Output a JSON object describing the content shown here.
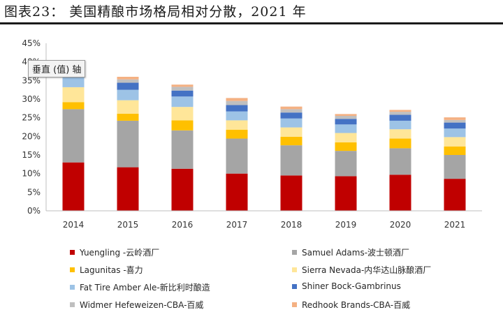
{
  "figure_title": "图表23：  美国精酿市场格局相对分散，2021 年",
  "tooltip": "垂直 (值) 轴",
  "chart_data": {
    "type": "bar",
    "stacked": true,
    "categories": [
      "2014",
      "2015",
      "2016",
      "2017",
      "2018",
      "2019",
      "2020",
      "2021"
    ],
    "ylim": [
      0,
      45
    ],
    "ytick_values": [
      0,
      5,
      10,
      15,
      20,
      25,
      30,
      35,
      40,
      45
    ],
    "ytick_labels": [
      "0%",
      "5%",
      "10%",
      "15%",
      "20%",
      "25%",
      "30%",
      "35%",
      "40%",
      "45%"
    ],
    "grid": false,
    "legend_position": "bottom",
    "series": [
      {
        "name": "Yuengling -云岭酒厂",
        "color": "#c00000",
        "values": [
          13.0,
          11.7,
          11.3,
          10.0,
          9.5,
          9.3,
          9.7,
          8.6
        ]
      },
      {
        "name": "Samuel Adams-波士顿酒厂",
        "color": "#a5a5a5",
        "values": [
          14.3,
          12.5,
          10.3,
          9.4,
          8.1,
          6.8,
          7.1,
          6.4
        ]
      },
      {
        "name": "Lagunitas -喜力",
        "color": "#ffc000",
        "values": [
          1.9,
          1.9,
          2.7,
          2.4,
          2.3,
          2.3,
          2.6,
          2.3
        ]
      },
      {
        "name": "Sierra Nevada-内华达山脉酿酒厂",
        "color": "#ffe699",
        "values": [
          4.0,
          3.6,
          3.6,
          2.5,
          2.5,
          2.5,
          2.5,
          2.5
        ]
      },
      {
        "name": "Fat Tire Amber Ale-新比利时酿造",
        "color": "#9dc3e6",
        "values": [
          3.0,
          2.8,
          2.8,
          2.4,
          2.4,
          2.3,
          2.3,
          2.3
        ]
      },
      {
        "name": "Shiner Bock-Gambrinus",
        "color": "#4472c4",
        "values": [
          0.0,
          1.9,
          1.6,
          1.7,
          1.6,
          1.5,
          1.6,
          1.6
        ]
      },
      {
        "name": "Widmer Hefeweizen-CBA-百威",
        "color": "#bfbfbf",
        "values": [
          0.0,
          0.9,
          1.0,
          1.1,
          0.9,
          0.8,
          0.8,
          0.7
        ]
      },
      {
        "name": "Redhook Brands-CBA-百威",
        "color": "#f4b183",
        "values": [
          0.0,
          0.7,
          0.6,
          0.8,
          0.7,
          0.5,
          0.5,
          0.7
        ]
      }
    ]
  }
}
